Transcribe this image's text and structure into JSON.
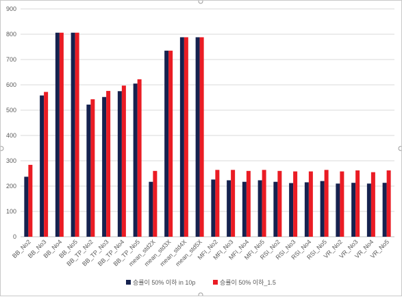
{
  "chart_data": {
    "type": "bar",
    "title": "",
    "xlabel": "",
    "ylabel": "",
    "ylim": [
      0,
      900
    ],
    "yticks": [
      0,
      100,
      200,
      300,
      400,
      500,
      600,
      700,
      800,
      900
    ],
    "grid": true,
    "legend_position": "bottom",
    "categories": [
      "BB_No2",
      "BB_No3",
      "BB_No4",
      "BB_No5",
      "BB_TP_No2",
      "BB_TP_No3",
      "BB_TP_No4",
      "BB_TP_No5",
      "mean_std2X",
      "mean_std3X",
      "mean_std4X",
      "mean_std5X",
      "MFI_No2",
      "MFI_No3",
      "MFI_No4",
      "MFI_No5",
      "RSI_No2",
      "RSI_No3",
      "RSI_No4",
      "RSI_No5",
      "VR_No2",
      "VR_No3",
      "VR_No4",
      "VR_No5"
    ],
    "series": [
      {
        "name": "승률이 50% 이하 in 10p",
        "color": "#16224f",
        "values": [
          237,
          558,
          806,
          806,
          522,
          552,
          575,
          605,
          217,
          735,
          788,
          788,
          226,
          223,
          217,
          223,
          217,
          212,
          215,
          220,
          210,
          213,
          210,
          213
        ]
      },
      {
        "name": "승률이 50% 이하_1.5",
        "color": "#ea1c24",
        "values": [
          284,
          572,
          806,
          806,
          543,
          576,
          597,
          622,
          260,
          735,
          788,
          788,
          264,
          264,
          260,
          264,
          260,
          258,
          258,
          264,
          258,
          262,
          255,
          262
        ]
      }
    ]
  }
}
